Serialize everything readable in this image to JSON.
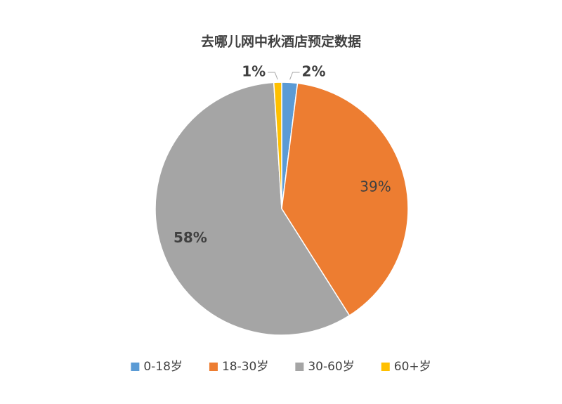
{
  "chart_data": {
    "type": "pie",
    "title": "去哪儿网中秋酒店预定数据",
    "categories": [
      "0-18岁",
      "18-30岁",
      "30-60岁",
      "60+岁"
    ],
    "values": [
      2,
      39,
      58,
      1
    ],
    "value_labels": [
      "2%",
      "39%",
      "58%",
      "1%"
    ],
    "colors": [
      "#5b9bd5",
      "#ed7d31",
      "#a5a5a5",
      "#ffc000"
    ],
    "legend": "bottom"
  }
}
